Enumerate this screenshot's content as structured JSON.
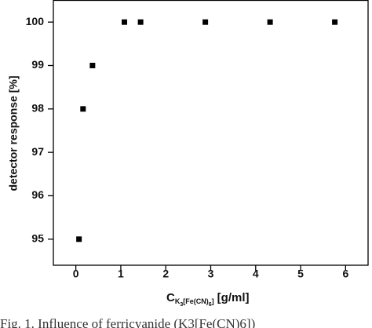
{
  "chart_data": {
    "type": "scatter",
    "ylabel": "detector response [%]",
    "xlabel": {
      "main": "C",
      "sub": [
        "K",
        "3",
        "[Fe(CN)",
        "6",
        "]"
      ],
      "unit": "[g/ml]"
    },
    "caption": "Fig. 1. Influence of ferricyanide (K3[Fe(CN)6])",
    "x": [
      0.07,
      0.16,
      0.37,
      1.08,
      1.44,
      2.88,
      4.32,
      5.76
    ],
    "series": [
      {
        "color": "#000000",
        "values": [
          95,
          98,
          99,
          100,
          100,
          100,
          100,
          100
        ]
      }
    ],
    "xlim": [
      -0.5,
      6.5
    ],
    "xticks": [
      0,
      1,
      2,
      3,
      4,
      5,
      6
    ],
    "ylim": [
      94.4,
      100.5
    ],
    "yticks": [
      95,
      96,
      97,
      98,
      99,
      100
    ],
    "grid": false
  }
}
